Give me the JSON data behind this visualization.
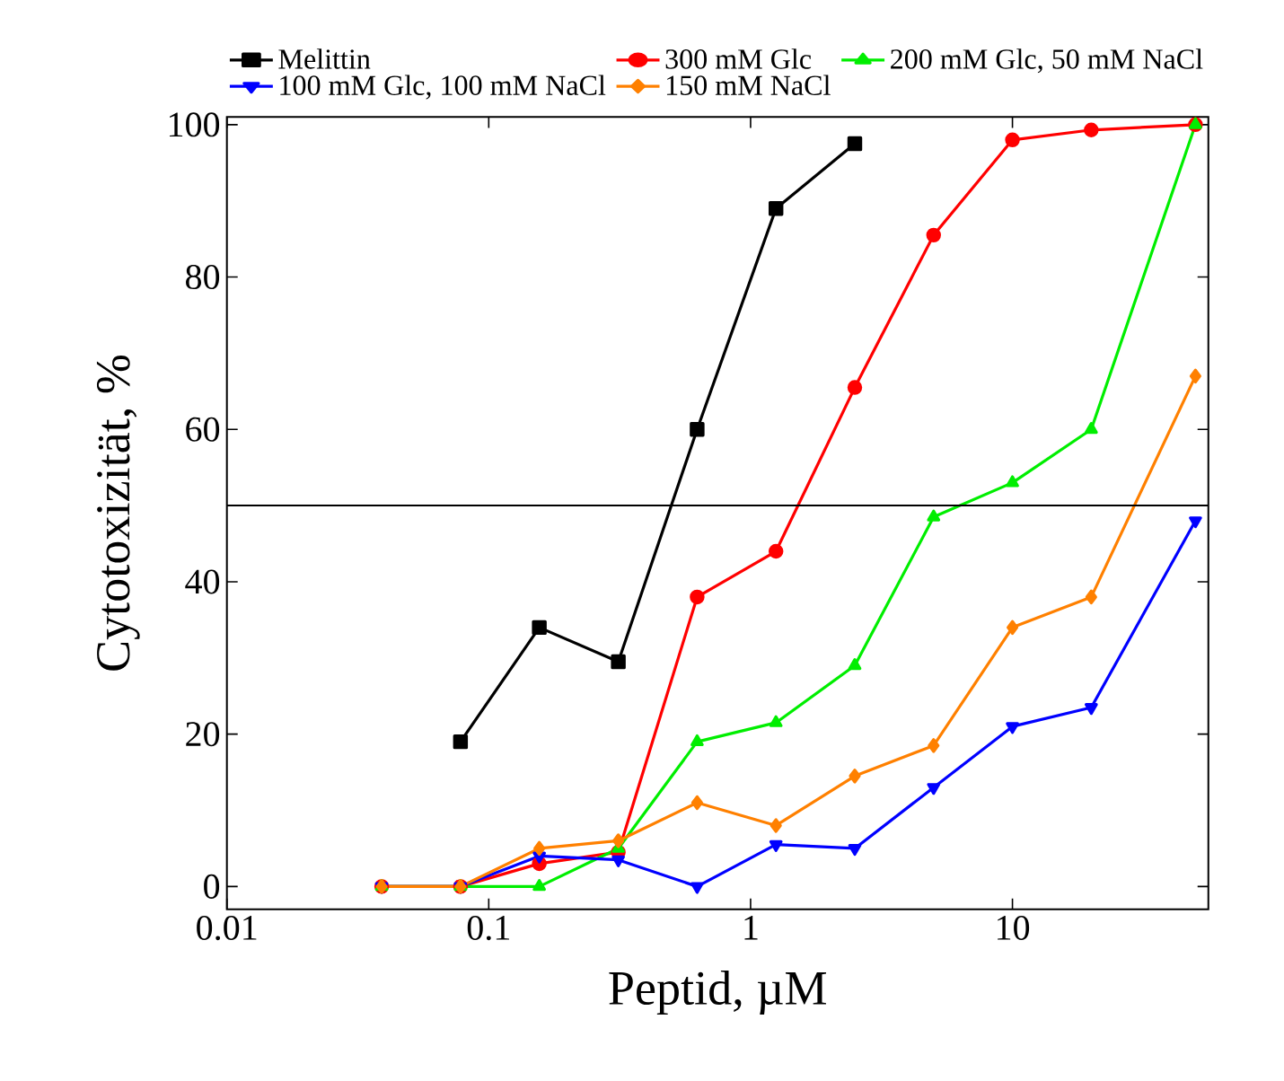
{
  "chart_data": {
    "type": "line",
    "xlabel": "Peptid, µM",
    "ylabel": "Cytotoxizität, %",
    "log": "x",
    "xlim": [
      0.01,
      56
    ],
    "xticks": [
      0.01,
      0.1,
      1,
      10
    ],
    "ylim": [
      -3,
      101
    ],
    "yticks": [
      0,
      20,
      40,
      60,
      80,
      100
    ],
    "legend": "top",
    "line_style": "solid",
    "grid": false,
    "ref_lines": [
      {
        "axis": "y",
        "value": 50,
        "color": "#000000"
      }
    ],
    "series": [
      {
        "name": "Melittin",
        "color": "#000000",
        "marker": "square",
        "x": [
          0.078,
          0.156,
          0.3125,
          0.625,
          1.25,
          2.5
        ],
        "values": [
          19,
          34,
          29.5,
          60,
          89,
          97.5
        ]
      },
      {
        "name": "300 mM Glc",
        "color": "#ff0000",
        "marker": "circle",
        "x": [
          0.039,
          0.078,
          0.156,
          0.3125,
          0.625,
          1.25,
          2.5,
          5,
          10,
          20,
          50
        ],
        "values": [
          0,
          0,
          3,
          4.5,
          38,
          44,
          65.5,
          85.5,
          98,
          99.3,
          100
        ]
      },
      {
        "name": "200 mM Glc, 50 mM NaCl",
        "color": "#00ee00",
        "marker": "triangle",
        "x": [
          0.039,
          0.078,
          0.156,
          0.3125,
          0.625,
          1.25,
          2.5,
          5,
          10,
          20,
          50
        ],
        "values": [
          0,
          0,
          0,
          5,
          19,
          21.5,
          29,
          48.5,
          53,
          60,
          100
        ]
      },
      {
        "name": "100 mM Glc, 100 mM NaCl",
        "color": "#0000ff",
        "marker": "triangle down",
        "x": [
          0.039,
          0.078,
          0.156,
          0.3125,
          0.625,
          1.25,
          2.5,
          5,
          10,
          20,
          50
        ],
        "values": [
          0,
          0,
          4,
          3.5,
          0,
          5.5,
          5,
          13,
          21,
          23.5,
          48
        ]
      },
      {
        "name": "150 mM NaCl",
        "color": "#ff8000",
        "marker": "diamond",
        "x": [
          0.039,
          0.078,
          0.156,
          0.3125,
          0.625,
          1.25,
          2.5,
          5,
          10,
          20,
          50
        ],
        "values": [
          0,
          0,
          5,
          6,
          11,
          8,
          14.5,
          18.5,
          34,
          38,
          67
        ]
      }
    ]
  }
}
